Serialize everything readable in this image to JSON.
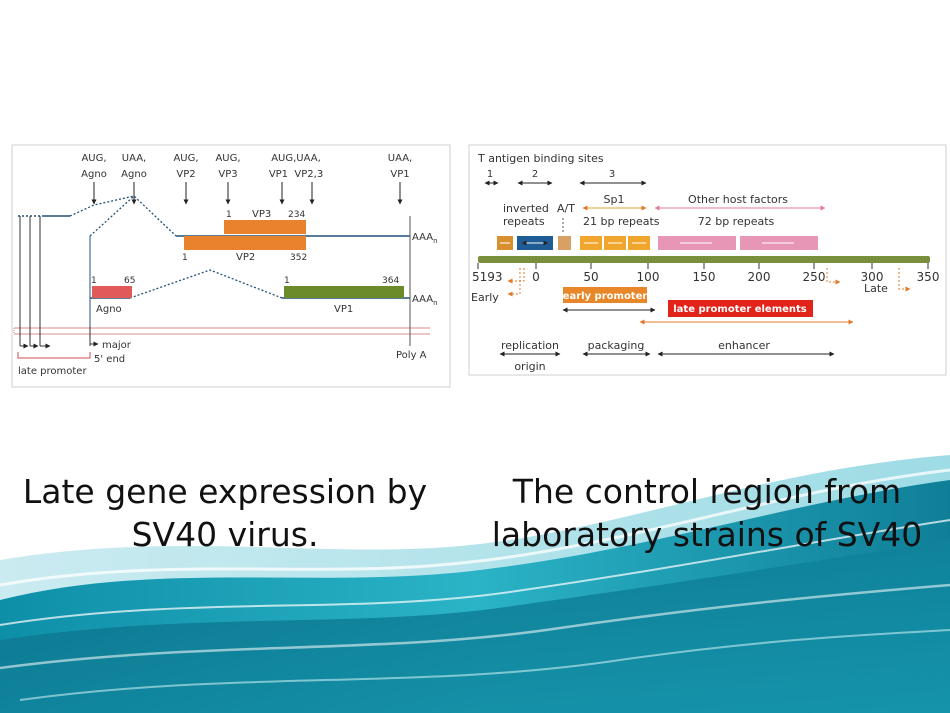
{
  "left_figure": {
    "labels": {
      "aug_agno": "AUG,",
      "agno_a": "Agno",
      "uaa_agno": "UAA,",
      "agno_b": "Agno",
      "aug_vp2": "AUG,",
      "vp2_top": "VP2",
      "aug_vp3": "AUG,",
      "vp3_top": "VP3",
      "auguaa": "AUG,UAA,",
      "vp1_vp23": "VP1  VP2,3",
      "uaa_vp1": "UAA,",
      "vp1_top": "VP1",
      "n1": "1",
      "vp3_bar": "VP3",
      "n234": "234",
      "aaa1": "AAA",
      "aaa_sub": "n",
      "n1b": "1",
      "vp2_bar": "VP2",
      "n352": "352",
      "n1c": "1",
      "n65": "65",
      "n1d": "1",
      "n364": "364",
      "aaa2": "AAA",
      "aaa_sub2": "n",
      "agno_bar": "Agno",
      "vp1_bar": "VP1",
      "major": "major",
      "five_end": "5' end",
      "late_promoter": "late promoter",
      "poly_a": "Poly A"
    }
  },
  "right_figure": {
    "labels": {
      "t_antigen": "T antigen binding sites",
      "site1": "1",
      "site2": "2",
      "site3": "3",
      "inverted": "inverted",
      "repeats": "repeats",
      "at": "A/T",
      "sp1": "Sp1",
      "bp21": "21 bp repeats",
      "other_host": "Other host factors",
      "bp72": "72 bp repeats",
      "early": "Early",
      "late": "Late",
      "early_promoter": "early promoter",
      "late_promoter_elements": "late promoter elements",
      "replication": "replication",
      "origin": "origin",
      "packaging": "packaging",
      "enhancer": "enhancer"
    },
    "ticks": [
      "5193",
      "0",
      "50",
      "100",
      "150",
      "200",
      "250",
      "300",
      "350"
    ]
  },
  "captions": {
    "left": [
      "Late gene expression by",
      "SV40 virus."
    ],
    "right": [
      "The control region from",
      "laboratory strains of SV40"
    ]
  }
}
